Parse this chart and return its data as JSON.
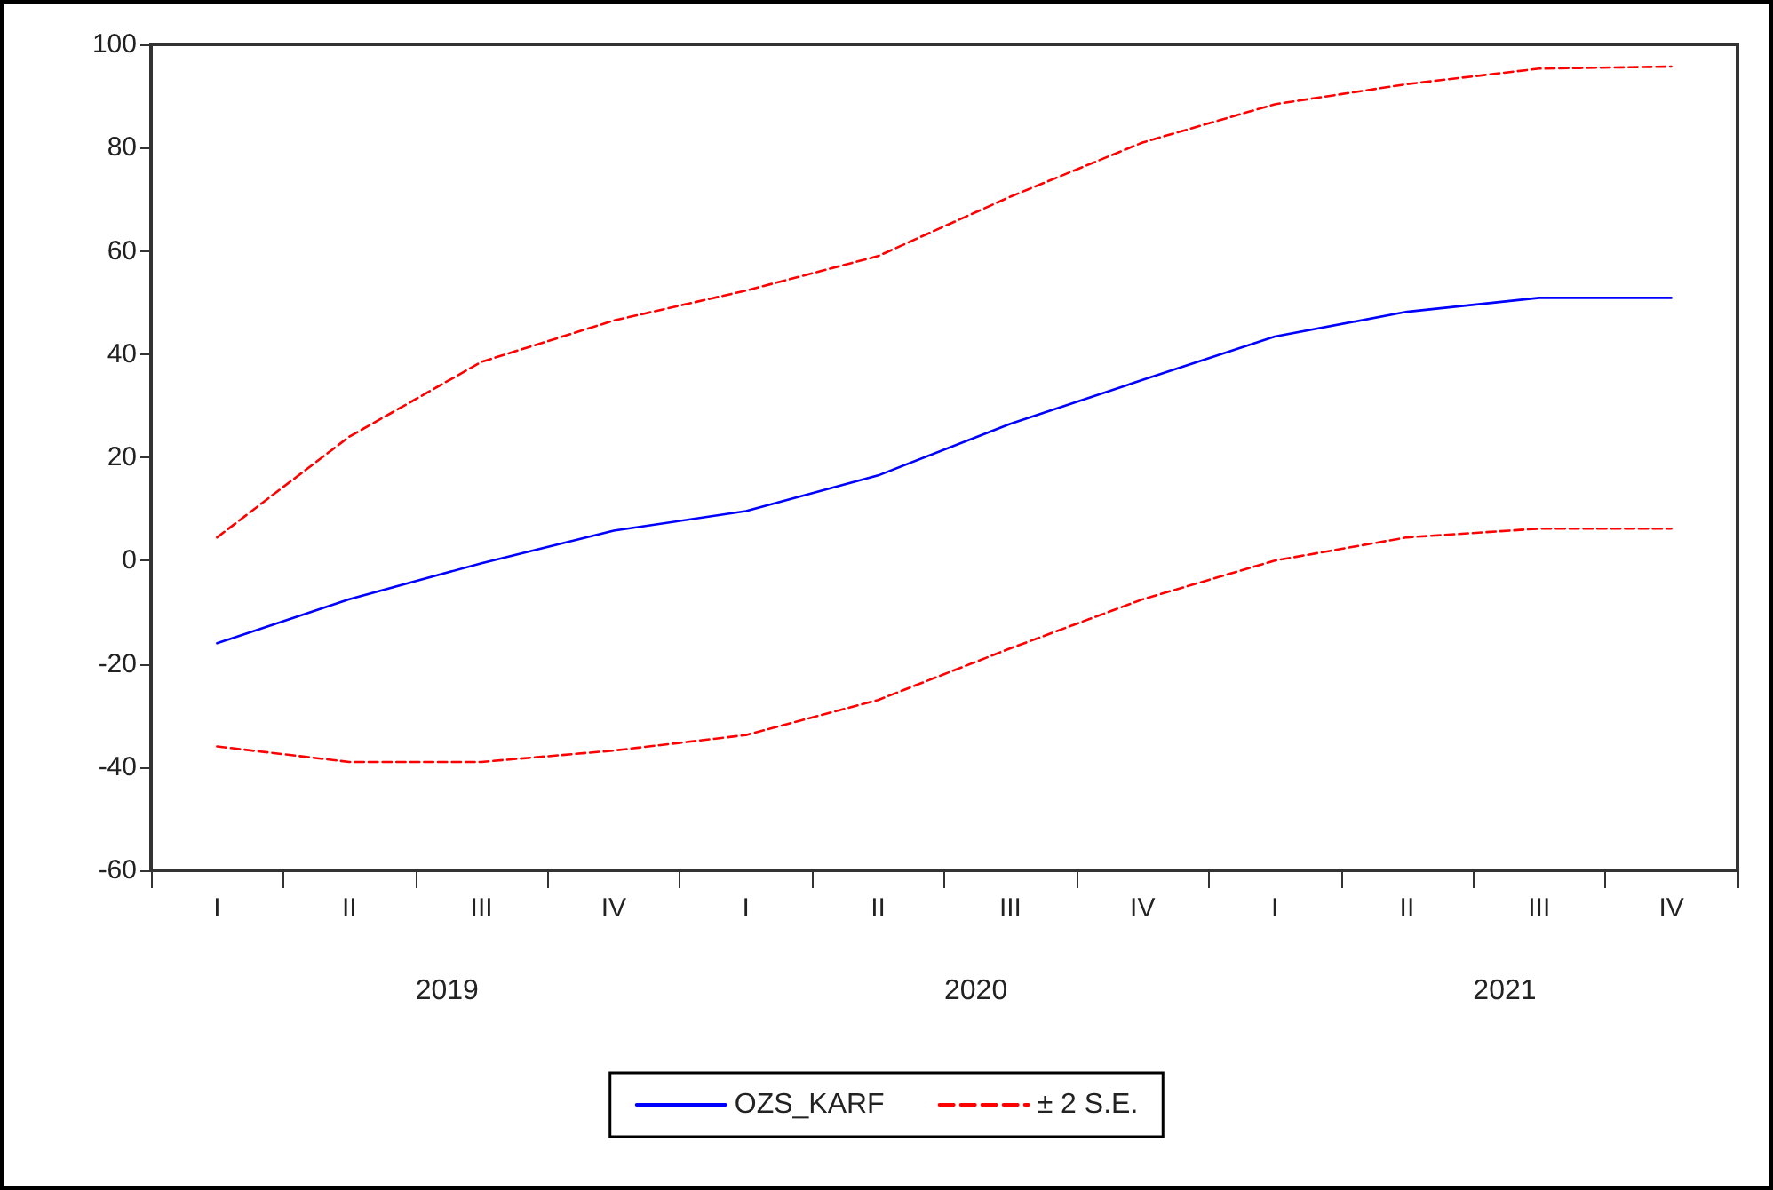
{
  "chart_data": {
    "type": "line",
    "categories": [
      "I",
      "II",
      "III",
      "IV",
      "I",
      "II",
      "III",
      "IV",
      "I",
      "II",
      "III",
      "IV"
    ],
    "annotations": [
      "2019",
      "2020",
      "2021"
    ],
    "series": [
      {
        "name": "OZS_KARF",
        "color": "#0000ff",
        "line_style": "solid",
        "values": [
          -16,
          -7.5,
          -0.5,
          5.8,
          9.6,
          16.5,
          26.5,
          35,
          43.4,
          48.2,
          50.9,
          50.9
        ]
      },
      {
        "name": "± 2 S.E.",
        "color": "#ff0000",
        "line_style": "dashed",
        "values": [
          4.5,
          24,
          38.5,
          46.5,
          52.3,
          59,
          70.5,
          81,
          88.4,
          92.3,
          95.3,
          95.7
        ]
      },
      {
        "color": "#ff0000",
        "line_style": "dashed",
        "values": [
          -36,
          -39,
          -39,
          -36.8,
          -33.8,
          -27,
          -17,
          -7.5,
          0,
          4.5,
          6.2,
          6.2
        ]
      }
    ],
    "ylim": [
      -60,
      100
    ],
    "yticks": [
      -60,
      -40,
      -20,
      0,
      20,
      40,
      60,
      80,
      100
    ],
    "grid": false,
    "legend": "bottom",
    "marker": "none"
  }
}
